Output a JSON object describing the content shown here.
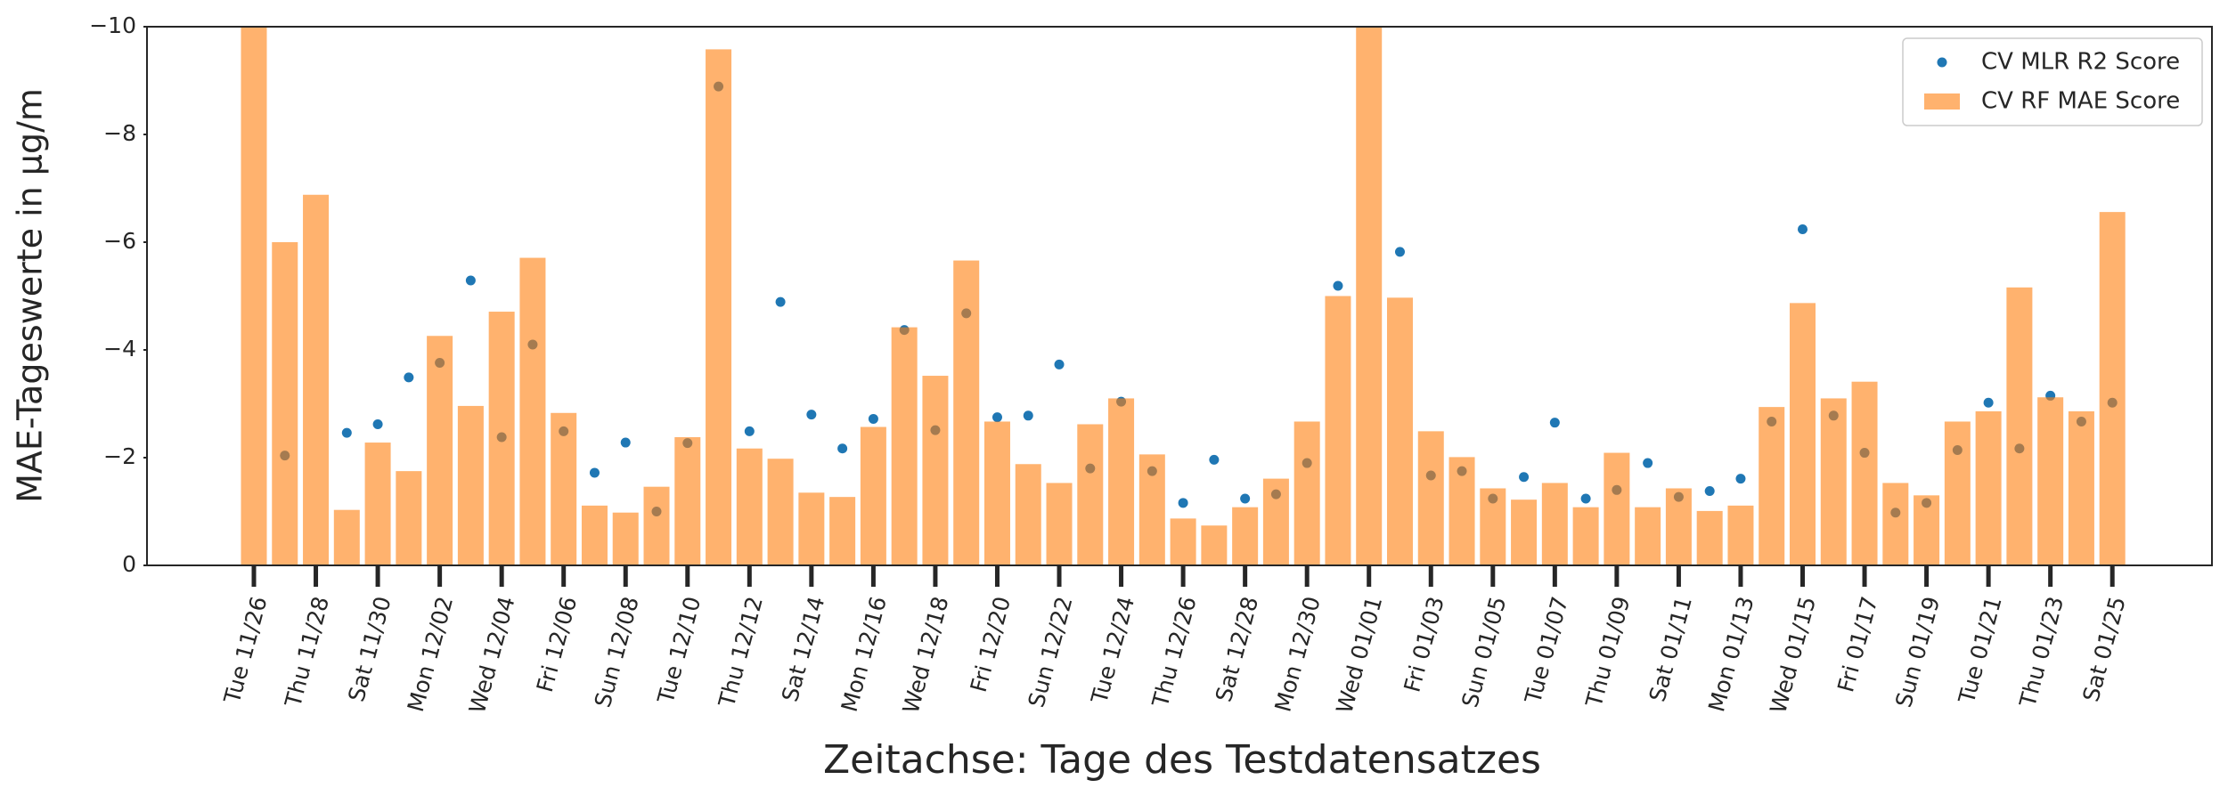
{
  "chart_data": {
    "type": "bar-scatter",
    "ylabel": "MAE-Tageswerte in µg/m",
    "xlabel": "Zeitachse: Tage des Testdatensatzes",
    "categories": [
      "Tue 11/26",
      null,
      "Thu 11/28",
      null,
      "Sat 11/30",
      null,
      "Mon 12/02",
      null,
      "Wed 12/04",
      null,
      "Fri 12/06",
      null,
      "Sun 12/08",
      null,
      "Tue 12/10",
      null,
      "Thu 12/12",
      null,
      "Sat 12/14",
      null,
      "Mon 12/16",
      null,
      "Wed 12/18",
      null,
      "Fri 12/20",
      null,
      "Sun 12/22",
      null,
      "Tue 12/24",
      null,
      "Thu 12/26",
      null,
      "Sat 12/28",
      null,
      "Mon 12/30",
      null,
      "Wed 01/01",
      null,
      "Fri 01/03",
      null,
      "Sun 01/05",
      null,
      "Tue 01/07",
      null,
      "Thu 01/09",
      null,
      "Sat 01/11",
      null,
      "Mon 01/13",
      null,
      "Wed 01/15",
      null,
      "Fri 01/17",
      null,
      "Sun 01/19",
      null,
      "Tue 01/21",
      null,
      "Thu 01/23",
      null,
      "Sat 01/25"
    ],
    "series": [
      {
        "name": "CV MLR R2 Score",
        "type": "scatter",
        "color": "#1f77b4",
        "values": [
          null,
          -2.04,
          null,
          -2.46,
          -2.62,
          -3.49,
          -3.76,
          -5.29,
          -2.38,
          -4.1,
          -2.49,
          -1.72,
          -2.28,
          -1.0,
          -2.27,
          -8.89,
          -2.49,
          -4.89,
          -2.8,
          -2.17,
          -2.72,
          -4.37,
          -2.51,
          -4.68,
          -2.75,
          -2.78,
          -3.73,
          -1.8,
          -3.04,
          -1.75,
          -1.16,
          -1.96,
          -1.24,
          -1.32,
          -1.9,
          -5.19,
          null,
          -5.82,
          -1.67,
          -1.75,
          -1.24,
          -1.64,
          -2.65,
          -1.24,
          -1.4,
          -1.9,
          -1.27,
          -1.38,
          -1.61,
          -2.67,
          -6.24,
          -2.78,
          -2.09,
          -0.98,
          -1.16,
          -2.14,
          -3.02,
          -2.17,
          -3.15,
          -2.67,
          -3.02
        ]
      },
      {
        "name": "CV RF MAE Score",
        "type": "bar",
        "color": "#ff7f0e",
        "values": [
          -10.5,
          -6.0,
          -6.88,
          -1.03,
          -2.28,
          -1.75,
          -4.26,
          -2.96,
          -4.71,
          -5.71,
          -2.83,
          -1.11,
          -0.98,
          -1.46,
          -2.38,
          -9.58,
          -2.17,
          -1.98,
          -1.35,
          -1.27,
          -2.57,
          -4.42,
          -3.52,
          -5.66,
          -2.67,
          -1.88,
          -1.53,
          -2.62,
          -3.1,
          -2.06,
          -0.87,
          -0.74,
          -1.08,
          -1.61,
          -2.67,
          -5.0,
          -10.4,
          -4.97,
          -2.49,
          -2.01,
          -1.43,
          -1.22,
          -1.53,
          -1.08,
          -2.09,
          -1.08,
          -1.43,
          -1.01,
          -1.11,
          -2.94,
          -4.87,
          -3.1,
          -3.41,
          -1.53,
          -1.3,
          -2.67,
          -2.86,
          -5.16,
          -3.12,
          -2.86,
          -6.56
        ]
      }
    ],
    "ylim": [
      0,
      -10
    ],
    "yticks": [
      0,
      {
        "value": -2,
        "label": "−2"
      },
      {
        "value": -4,
        "label": "−4"
      },
      {
        "value": -6,
        "label": "−6"
      },
      {
        "value": -8,
        "label": "−8"
      },
      {
        "value": -10,
        "label": "−10"
      }
    ],
    "legend": "upper right"
  }
}
